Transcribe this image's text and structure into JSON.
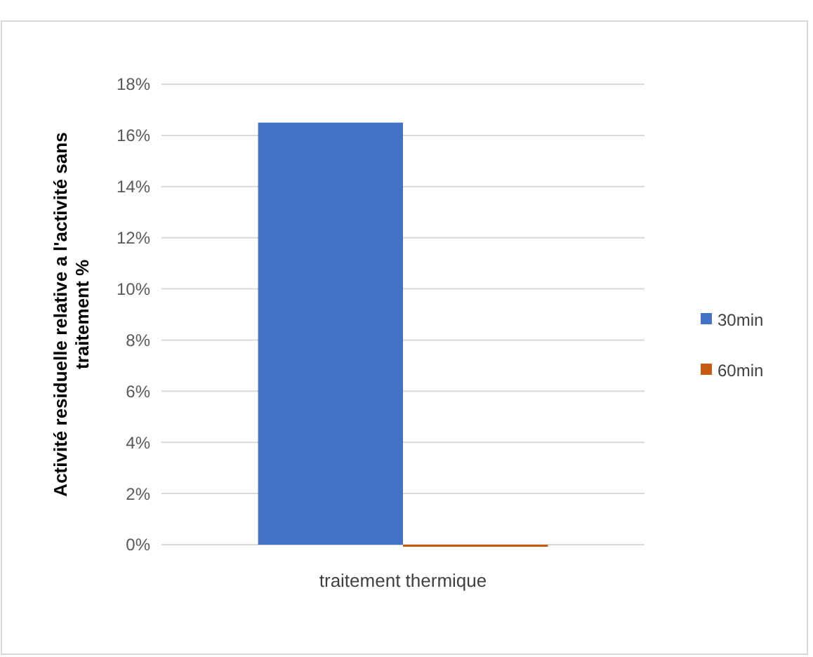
{
  "chart_data": {
    "type": "bar",
    "categories": [
      "traitement thermique"
    ],
    "xlabel": null,
    "ylabel": "Activité residuelle relative a l'activité sans traitement %",
    "series": [
      {
        "name": "30min",
        "color": "#4472c4",
        "values": [
          16.5
        ]
      },
      {
        "name": "60min",
        "color": "#c55a11",
        "values": [
          0
        ]
      }
    ],
    "ylim": [
      0,
      18
    ],
    "yticks": [
      {
        "value": 0,
        "label": "0%"
      },
      {
        "value": 2,
        "label": "2%"
      },
      {
        "value": 4,
        "label": "4%"
      },
      {
        "value": 6,
        "label": "6%"
      },
      {
        "value": 8,
        "label": "8%"
      },
      {
        "value": 10,
        "label": "10%"
      },
      {
        "value": 12,
        "label": "12%"
      },
      {
        "value": 14,
        "label": "14%"
      },
      {
        "value": 16,
        "label": "16%"
      },
      {
        "value": 18,
        "label": "18%"
      }
    ],
    "grid": "y",
    "legend": "right"
  }
}
